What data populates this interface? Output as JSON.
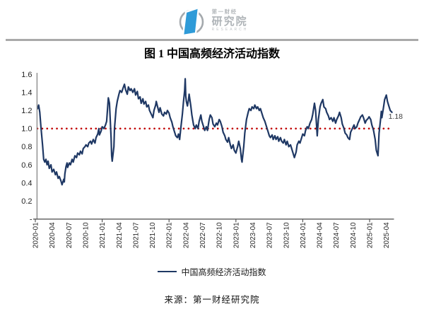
{
  "logo": {
    "brand_top": "第一财经",
    "brand_main": "研究院",
    "brand_sub": "RESEARCH",
    "circle_color": "#a4a9ad",
    "shape_color": "#2f9bd8"
  },
  "figure": {
    "title": "图 1 中国高频经济活动指数",
    "legend": [
      {
        "label": "中国高频经济活动指数",
        "color": "#1f3864"
      }
    ],
    "source": "来源：第一财经研究院"
  },
  "chart_data": {
    "type": "line",
    "title": "图 1 中国高频经济活动指数",
    "series_name": "中国高频经济活动指数",
    "x_unit": "months since 2020-01 (t=0 is 2020-01, t=63 is 2025-04)",
    "x_tick_labels": [
      "2020-01",
      "2020-04",
      "2020-07",
      "2020-10",
      "2021-01",
      "2021-04",
      "2021-07",
      "2021-10",
      "2022-01",
      "2022-04",
      "2022-07",
      "2022-10",
      "2023-01",
      "2023-04",
      "2023-07",
      "2023-10",
      "2024-01",
      "2024-04",
      "2024-07",
      "2024-10",
      "2025-01",
      "2025-04"
    ],
    "x_tick_t": [
      0,
      3,
      6,
      9,
      12,
      15,
      18,
      21,
      24,
      27,
      30,
      33,
      36,
      39,
      42,
      45,
      48,
      51,
      54,
      57,
      60,
      63
    ],
    "ylim": [
      0,
      1.6
    ],
    "y_ticks": [
      {
        "v": 1.6,
        "label": "1.6"
      },
      {
        "v": 1.4,
        "label": "1.4"
      },
      {
        "v": 1.2,
        "label": "1.2"
      },
      {
        "v": 1.0,
        "label": "1.0"
      },
      {
        "v": 0.8,
        "label": "0.8"
      },
      {
        "v": 0.6,
        "label": "0.6"
      },
      {
        "v": 0.4,
        "label": "0.4"
      },
      {
        "v": 0.2,
        "label": "0.2"
      },
      {
        "v": 0.0,
        "label": "-"
      }
    ],
    "grid": false,
    "legend_position": "bottom",
    "baseline": {
      "v": 1.0,
      "color": "#c00000",
      "style": "dotted"
    },
    "line_color": "#1f3864",
    "last_value_label": "1.18",
    "points": [
      [
        0.4,
        1.22
      ],
      [
        0.6,
        1.26
      ],
      [
        0.8,
        1.18
      ],
      [
        1.0,
        1.02
      ],
      [
        1.3,
        0.82
      ],
      [
        1.5,
        0.66
      ],
      [
        1.7,
        0.63
      ],
      [
        1.9,
        0.66
      ],
      [
        2.1,
        0.6
      ],
      [
        2.3,
        0.64
      ],
      [
        2.5,
        0.56
      ],
      [
        2.8,
        0.6
      ],
      [
        3.0,
        0.52
      ],
      [
        3.3,
        0.55
      ],
      [
        3.6,
        0.49
      ],
      [
        3.8,
        0.52
      ],
      [
        4.1,
        0.45
      ],
      [
        4.3,
        0.47
      ],
      [
        4.6,
        0.42
      ],
      [
        4.8,
        0.38
      ],
      [
        5.1,
        0.44
      ],
      [
        5.2,
        0.41
      ],
      [
        5.3,
        0.5
      ],
      [
        5.5,
        0.58
      ],
      [
        5.7,
        0.62
      ],
      [
        5.8,
        0.57
      ],
      [
        6.1,
        0.62
      ],
      [
        6.3,
        0.6
      ],
      [
        6.6,
        0.66
      ],
      [
        6.8,
        0.63
      ],
      [
        7.1,
        0.7
      ],
      [
        7.4,
        0.68
      ],
      [
        7.6,
        0.73
      ],
      [
        7.9,
        0.71
      ],
      [
        8.1,
        0.75
      ],
      [
        8.4,
        0.72
      ],
      [
        8.6,
        0.78
      ],
      [
        8.9,
        0.8
      ],
      [
        9.1,
        0.82
      ],
      [
        9.4,
        0.8
      ],
      [
        9.6,
        0.84
      ],
      [
        9.9,
        0.86
      ],
      [
        10.1,
        0.83
      ],
      [
        10.4,
        0.88
      ],
      [
        10.7,
        0.84
      ],
      [
        10.9,
        0.9
      ],
      [
        11.2,
        0.94
      ],
      [
        11.4,
        1.0
      ],
      [
        11.5,
        0.93
      ],
      [
        11.8,
        0.97
      ],
      [
        12.0,
        1.02
      ],
      [
        12.3,
        1.0
      ],
      [
        12.6,
        1.04
      ],
      [
        12.8,
        1.08
      ],
      [
        13.1,
        1.34
      ],
      [
        13.3,
        1.28
      ],
      [
        13.6,
        0.9
      ],
      [
        13.7,
        0.7
      ],
      [
        13.8,
        0.64
      ],
      [
        14.1,
        0.8
      ],
      [
        14.2,
        1.0
      ],
      [
        14.5,
        1.22
      ],
      [
        14.7,
        1.3
      ],
      [
        15.0,
        1.38
      ],
      [
        15.2,
        1.42
      ],
      [
        15.5,
        1.4
      ],
      [
        15.7,
        1.44
      ],
      [
        16.0,
        1.49
      ],
      [
        16.2,
        1.43
      ],
      [
        16.5,
        1.38
      ],
      [
        16.7,
        1.46
      ],
      [
        17.0,
        1.42
      ],
      [
        17.2,
        1.44
      ],
      [
        17.5,
        1.4
      ],
      [
        17.8,
        1.44
      ],
      [
        18.0,
        1.37
      ],
      [
        18.3,
        1.41
      ],
      [
        18.5,
        1.33
      ],
      [
        18.8,
        1.35
      ],
      [
        19.0,
        1.28
      ],
      [
        19.3,
        1.33
      ],
      [
        19.5,
        1.27
      ],
      [
        19.8,
        1.3
      ],
      [
        20.0,
        1.24
      ],
      [
        20.3,
        1.26
      ],
      [
        20.5,
        1.2
      ],
      [
        20.8,
        1.16
      ],
      [
        21.1,
        1.12
      ],
      [
        21.3,
        1.2
      ],
      [
        21.6,
        1.26
      ],
      [
        21.7,
        1.3
      ],
      [
        21.9,
        1.25
      ],
      [
        22.2,
        1.18
      ],
      [
        22.4,
        1.23
      ],
      [
        22.7,
        1.16
      ],
      [
        23.0,
        1.14
      ],
      [
        23.2,
        1.18
      ],
      [
        23.5,
        1.16
      ],
      [
        23.7,
        1.2
      ],
      [
        24.0,
        1.17
      ],
      [
        24.2,
        1.12
      ],
      [
        24.5,
        1.07
      ],
      [
        24.7,
        1.02
      ],
      [
        25.0,
        0.96
      ],
      [
        25.2,
        0.92
      ],
      [
        25.5,
        0.9
      ],
      [
        25.7,
        0.94
      ],
      [
        25.9,
        0.88
      ],
      [
        26.1,
        1.0
      ],
      [
        26.4,
        1.16
      ],
      [
        26.6,
        1.3
      ],
      [
        26.8,
        1.42
      ],
      [
        26.9,
        1.55
      ],
      [
        27.0,
        1.36
      ],
      [
        27.1,
        1.3
      ],
      [
        27.3,
        1.25
      ],
      [
        27.5,
        1.32
      ],
      [
        27.6,
        1.38
      ],
      [
        27.9,
        1.25
      ],
      [
        28.1,
        1.15
      ],
      [
        28.4,
        1.04
      ],
      [
        28.7,
        1.0
      ],
      [
        28.9,
        1.04
      ],
      [
        29.2,
        1.0
      ],
      [
        29.4,
        1.08
      ],
      [
        29.7,
        1.15
      ],
      [
        29.9,
        1.08
      ],
      [
        30.2,
        1.02
      ],
      [
        30.4,
        0.98
      ],
      [
        30.7,
        1.02
      ],
      [
        30.9,
        0.98
      ],
      [
        31.2,
        1.1
      ],
      [
        31.4,
        1.15
      ],
      [
        31.7,
        1.12
      ],
      [
        31.9,
        1.05
      ],
      [
        32.2,
        1.02
      ],
      [
        32.5,
        1.06
      ],
      [
        32.7,
        1.04
      ],
      [
        33.0,
        1.1
      ],
      [
        33.2,
        1.08
      ],
      [
        33.5,
        1.02
      ],
      [
        33.7,
        0.96
      ],
      [
        34.0,
        0.92
      ],
      [
        34.2,
        0.88
      ],
      [
        34.5,
        0.85
      ],
      [
        34.7,
        0.9
      ],
      [
        35.0,
        0.82
      ],
      [
        35.2,
        0.78
      ],
      [
        35.5,
        0.82
      ],
      [
        35.7,
        0.76
      ],
      [
        36.0,
        0.73
      ],
      [
        36.3,
        0.8
      ],
      [
        36.5,
        0.86
      ],
      [
        36.8,
        0.78
      ],
      [
        37.0,
        0.66
      ],
      [
        37.1,
        0.63
      ],
      [
        37.4,
        0.8
      ],
      [
        37.6,
        0.95
      ],
      [
        37.9,
        1.1
      ],
      [
        38.2,
        1.18
      ],
      [
        38.4,
        1.22
      ],
      [
        38.7,
        1.2
      ],
      [
        38.9,
        1.24
      ],
      [
        39.2,
        1.22
      ],
      [
        39.4,
        1.26
      ],
      [
        39.7,
        1.22
      ],
      [
        39.9,
        1.24
      ],
      [
        40.2,
        1.2
      ],
      [
        40.4,
        1.22
      ],
      [
        40.7,
        1.16
      ],
      [
        40.9,
        1.12
      ],
      [
        41.2,
        1.08
      ],
      [
        41.4,
        1.04
      ],
      [
        41.7,
        0.98
      ],
      [
        42.0,
        0.92
      ],
      [
        42.2,
        0.9
      ],
      [
        42.5,
        0.93
      ],
      [
        42.7,
        0.88
      ],
      [
        43.0,
        0.92
      ],
      [
        43.2,
        0.88
      ],
      [
        43.5,
        0.91
      ],
      [
        43.7,
        0.86
      ],
      [
        44.0,
        0.9
      ],
      [
        44.2,
        0.86
      ],
      [
        44.5,
        0.84
      ],
      [
        44.7,
        0.88
      ],
      [
        45.0,
        0.82
      ],
      [
        45.2,
        0.86
      ],
      [
        45.5,
        0.8
      ],
      [
        45.8,
        0.82
      ],
      [
        46.0,
        0.78
      ],
      [
        46.3,
        0.72
      ],
      [
        46.5,
        0.68
      ],
      [
        46.8,
        0.74
      ],
      [
        47.0,
        0.82
      ],
      [
        47.3,
        0.86
      ],
      [
        47.5,
        0.84
      ],
      [
        47.8,
        0.9
      ],
      [
        48.0,
        0.94
      ],
      [
        48.3,
        0.92
      ],
      [
        48.5,
        0.98
      ],
      [
        48.8,
        1.02
      ],
      [
        49.0,
        1.0
      ],
      [
        49.3,
        1.06
      ],
      [
        49.6,
        1.1
      ],
      [
        49.8,
        1.16
      ],
      [
        50.1,
        1.28
      ],
      [
        50.3,
        1.2
      ],
      [
        50.6,
        0.92
      ],
      [
        50.8,
        1.1
      ],
      [
        51.1,
        1.24
      ],
      [
        51.3,
        1.28
      ],
      [
        51.6,
        1.32
      ],
      [
        51.8,
        1.24
      ],
      [
        52.1,
        1.22
      ],
      [
        52.3,
        1.18
      ],
      [
        52.6,
        1.14
      ],
      [
        52.8,
        1.1
      ],
      [
        53.1,
        1.12
      ],
      [
        53.4,
        1.08
      ],
      [
        53.6,
        1.12
      ],
      [
        53.9,
        1.06
      ],
      [
        54.1,
        1.1
      ],
      [
        54.4,
        1.14
      ],
      [
        54.6,
        1.18
      ],
      [
        54.9,
        1.12
      ],
      [
        55.1,
        1.05
      ],
      [
        55.4,
        1.0
      ],
      [
        55.6,
        0.95
      ],
      [
        55.9,
        0.93
      ],
      [
        56.1,
        0.9
      ],
      [
        56.4,
        0.88
      ],
      [
        56.6,
        0.96
      ],
      [
        56.9,
        1.0
      ],
      [
        57.2,
        1.04
      ],
      [
        57.4,
        1.0
      ],
      [
        57.7,
        1.02
      ],
      [
        57.9,
        1.06
      ],
      [
        58.2,
        1.1
      ],
      [
        58.4,
        1.13
      ],
      [
        58.7,
        1.15
      ],
      [
        58.9,
        1.12
      ],
      [
        59.2,
        1.06
      ],
      [
        59.4,
        1.09
      ],
      [
        59.7,
        1.11
      ],
      [
        59.9,
        1.13
      ],
      [
        60.2,
        1.1
      ],
      [
        60.4,
        1.04
      ],
      [
        60.7,
        0.98
      ],
      [
        61.0,
        0.88
      ],
      [
        61.2,
        0.76
      ],
      [
        61.5,
        0.7
      ],
      [
        61.7,
        0.95
      ],
      [
        62.0,
        1.12
      ],
      [
        62.1,
        1.19
      ],
      [
        62.2,
        1.12
      ],
      [
        62.5,
        1.24
      ],
      [
        62.7,
        1.32
      ],
      [
        63.0,
        1.37
      ],
      [
        63.2,
        1.3
      ],
      [
        63.5,
        1.24
      ],
      [
        63.7,
        1.2
      ],
      [
        64.0,
        1.18
      ]
    ]
  }
}
